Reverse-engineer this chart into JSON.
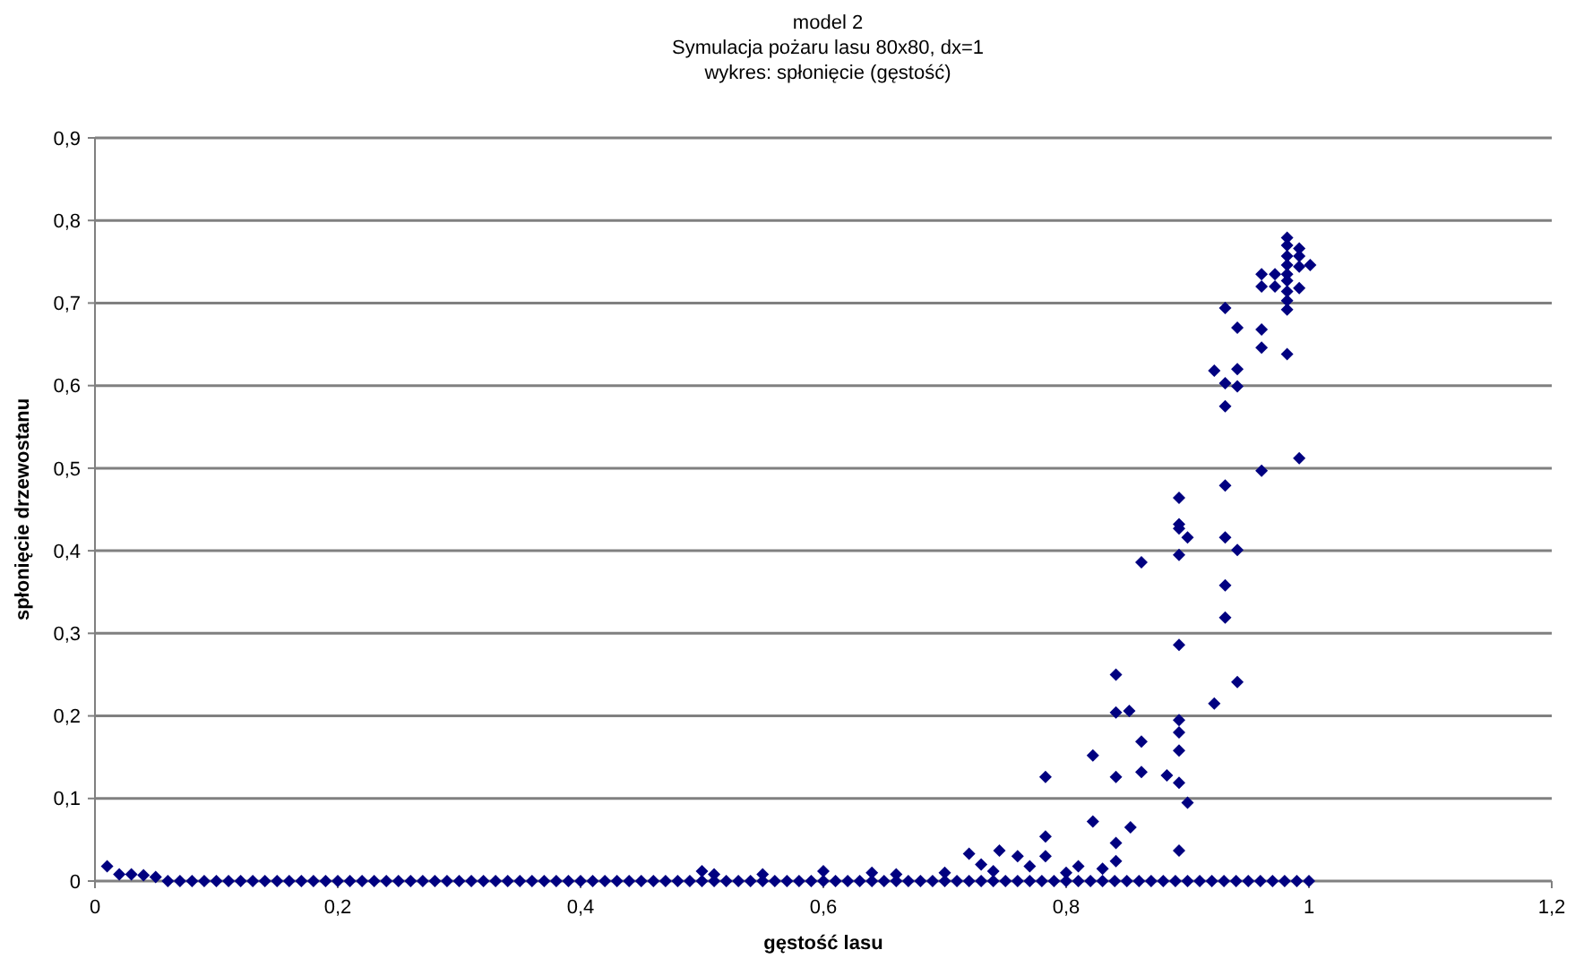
{
  "chart_data": {
    "type": "scatter",
    "title": "model 2",
    "subtitle": "Symulacja pożaru lasu 80x80, dx=1\nwykres: spłonięcie (gęstość)",
    "xlabel": "gęstość lasu",
    "ylabel": "spłonięcie drzewostanu",
    "marker": "diamond",
    "grid": "y",
    "xlim": [
      0,
      1.2
    ],
    "xticks": [
      0,
      {
        "value": 0.2,
        "label": "0,2"
      },
      {
        "value": 0.4,
        "label": "0,4"
      },
      {
        "value": 0.6,
        "label": "0,6"
      },
      {
        "value": 0.8,
        "label": "0,8"
      },
      1,
      {
        "value": 1.2,
        "label": "1,2"
      }
    ],
    "ylim": [
      0,
      0.9
    ],
    "yticks": [
      0,
      {
        "value": 0.1,
        "label": "0,1"
      },
      {
        "value": 0.2,
        "label": "0,2"
      },
      {
        "value": 0.3,
        "label": "0,3"
      },
      {
        "value": 0.4,
        "label": "0,4"
      },
      {
        "value": 0.5,
        "label": "0,5"
      },
      {
        "value": 0.6,
        "label": "0,6"
      },
      {
        "value": 0.7,
        "label": "0,7"
      },
      {
        "value": 0.8,
        "label": "0,8"
      },
      {
        "value": 0.9,
        "label": "0,9"
      }
    ],
    "series": [
      {
        "color": "#000080",
        "x": [
          0.01,
          0.02,
          0.03,
          0.04,
          0.05,
          0.06,
          0.07,
          0.08,
          0.09,
          0.1,
          0.11,
          0.12,
          0.13,
          0.14,
          0.15,
          0.16,
          0.17,
          0.18,
          0.19,
          0.2,
          0.21,
          0.22,
          0.23,
          0.24,
          0.25,
          0.26,
          0.27,
          0.28,
          0.29,
          0.3,
          0.31,
          0.32,
          0.33,
          0.34,
          0.35,
          0.36,
          0.37,
          0.38,
          0.39,
          0.4,
          0.41,
          0.42,
          0.43,
          0.44,
          0.45,
          0.46,
          0.47,
          0.48,
          0.49,
          0.5,
          0.51,
          0.52,
          0.53,
          0.54,
          0.55,
          0.56,
          0.57,
          0.58,
          0.59,
          0.6,
          0.61,
          0.62,
          0.63,
          0.64,
          0.65,
          0.66,
          0.67,
          0.68,
          0.69,
          0.7,
          0.71,
          0.72,
          0.73,
          0.74,
          0.75,
          0.76,
          0.77,
          0.78,
          0.79,
          0.8,
          0.81,
          0.82,
          0.83,
          0.84,
          0.85,
          0.86,
          0.87,
          0.88,
          0.89,
          0.9,
          0.91,
          0.92,
          0.93,
          0.94,
          0.95,
          0.96,
          0.97,
          0.98,
          0.99,
          1.0,
          0.5,
          0.51,
          0.55,
          0.6,
          0.64,
          0.66,
          0.7,
          0.72,
          0.73,
          0.74,
          0.745,
          0.76,
          0.77,
          0.783,
          0.783,
          0.783,
          0.8,
          0.81,
          0.822,
          0.822,
          0.83,
          0.841,
          0.841,
          0.841,
          0.841,
          0.841,
          0.852,
          0.853,
          0.862,
          0.862,
          0.862,
          0.883,
          0.893,
          0.893,
          0.893,
          0.893,
          0.893,
          0.893,
          0.893,
          0.893,
          0.893,
          0.893,
          0.9,
          0.9,
          0.922,
          0.922,
          0.931,
          0.931,
          0.931,
          0.931,
          0.931,
          0.931,
          0.931,
          0.941,
          0.941,
          0.941,
          0.941,
          0.941,
          0.961,
          0.961,
          0.961,
          0.961,
          0.961,
          0.972,
          0.972,
          0.982,
          0.982,
          0.982,
          0.982,
          0.982,
          0.982,
          0.982,
          0.982,
          0.982,
          0.982,
          0.992,
          0.992,
          0.992,
          0.992,
          0.992,
          1.001
        ],
        "values": [
          0.018,
          0.008,
          0.008,
          0.007,
          0.005,
          0,
          0,
          0,
          0,
          0,
          0,
          0,
          0,
          0,
          0,
          0,
          0,
          0,
          0,
          0,
          0,
          0,
          0,
          0,
          0,
          0,
          0,
          0,
          0,
          0,
          0,
          0,
          0,
          0,
          0,
          0,
          0,
          0,
          0,
          0,
          0,
          0,
          0,
          0,
          0,
          0,
          0,
          0,
          0,
          0,
          0,
          0,
          0,
          0,
          0,
          0,
          0,
          0,
          0,
          0,
          0,
          0,
          0,
          0,
          0,
          0,
          0,
          0,
          0,
          0,
          0,
          0,
          0,
          0,
          0,
          0,
          0,
          0,
          0,
          0,
          0,
          0,
          0,
          0,
          0,
          0,
          0,
          0,
          0,
          0,
          0,
          0,
          0,
          0,
          0,
          0,
          0,
          0,
          0,
          0,
          0.012,
          0.008,
          0.008,
          0.012,
          0.01,
          0.008,
          0.01,
          0.033,
          0.02,
          0.012,
          0.037,
          0.03,
          0.018,
          0.03,
          0.054,
          0.126,
          0.01,
          0.018,
          0.072,
          0.152,
          0.015,
          0.024,
          0.046,
          0.126,
          0.204,
          0.25,
          0.206,
          0.065,
          0.132,
          0.169,
          0.386,
          0.128,
          0.037,
          0.119,
          0.158,
          0.18,
          0.195,
          0.286,
          0.395,
          0.427,
          0.432,
          0.464,
          0.095,
          0.416,
          0.215,
          0.618,
          0.319,
          0.358,
          0.416,
          0.479,
          0.575,
          0.603,
          0.694,
          0.241,
          0.401,
          0.599,
          0.62,
          0.67,
          0.497,
          0.646,
          0.668,
          0.72,
          0.735,
          0.72,
          0.735,
          0.638,
          0.692,
          0.703,
          0.714,
          0.727,
          0.735,
          0.746,
          0.757,
          0.77,
          0.779,
          0.512,
          0.718,
          0.744,
          0.757,
          0.766,
          0.746
        ]
      }
    ]
  }
}
